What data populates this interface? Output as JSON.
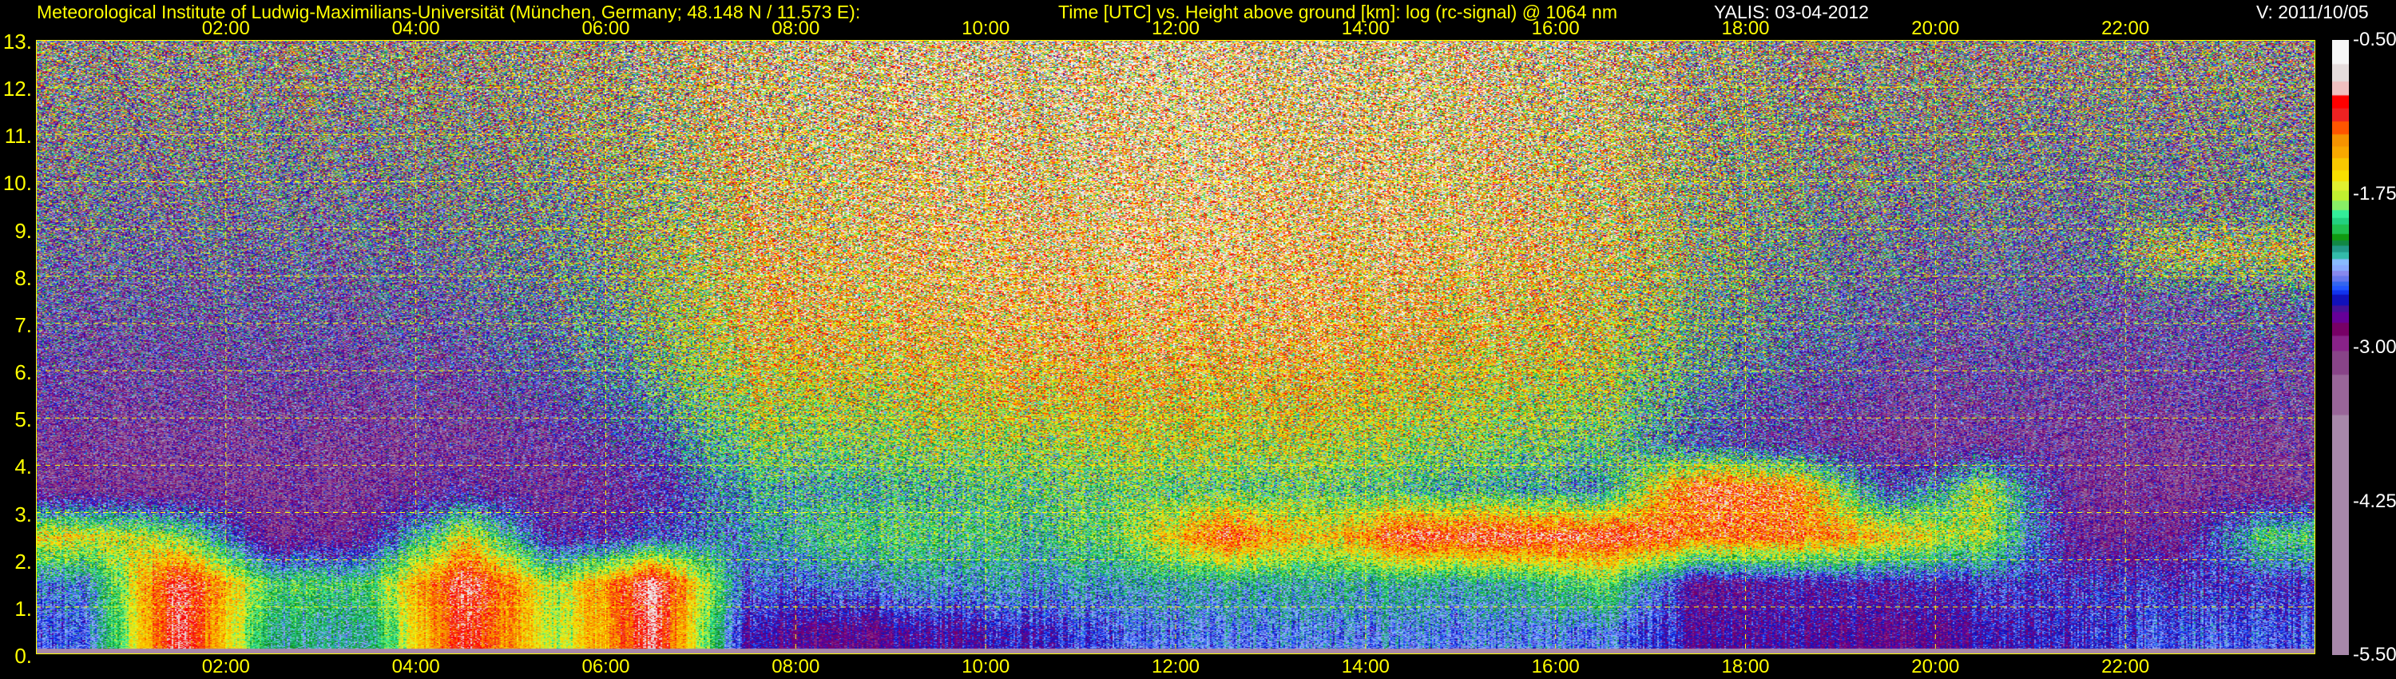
{
  "header": {
    "title": "Meteorological Institute of Ludwig-Maximilians-Universität (München, Germany; 48.148 N / 11.573 E):",
    "subtitle": "Time [UTC] vs. Height above ground [km]: log (rc-signal) @ 1064 nm",
    "instrument": "YALIS: 03-04-2012",
    "version": "V: 2011/10/05"
  },
  "chart_data": {
    "type": "heatmap",
    "title": "Time [UTC] vs. Height above ground [km]: log (rc-signal) @ 1064 nm",
    "xlabel": "Time [UTC]",
    "ylabel": "Height above ground [km]",
    "xlim_hours": [
      0,
      24
    ],
    "ylim_km": [
      0,
      13
    ],
    "grid": true,
    "x_tick_labels": [
      "02:00",
      "04:00",
      "06:00",
      "08:00",
      "10:00",
      "12:00",
      "14:00",
      "16:00",
      "18:00",
      "20:00",
      "22:00"
    ],
    "y_tick_labels": [
      "0.",
      "1.",
      "2.",
      "3.",
      "4.",
      "5.",
      "6.",
      "7.",
      "8.",
      "9.",
      "10.",
      "11.",
      "12.",
      "13."
    ],
    "colorbar": {
      "range": [
        -5.5,
        -0.5
      ],
      "tick_labels": [
        "-0.50",
        "-1.75",
        "-3.00",
        "-4.25",
        "-5.50"
      ],
      "colors": [
        "#f7f7f7",
        "#e5dcdc",
        "#f0c0c0",
        "#ff0000",
        "#ee2222",
        "#ff5500",
        "#f59300",
        "#f8a800",
        "#f8c800",
        "#f8e000",
        "#e0f030",
        "#c0f030",
        "#88ee66",
        "#33ee99",
        "#22d080",
        "#20c050",
        "#119911",
        "#118844",
        "#229988",
        "#33bbaa",
        "#88bbff",
        "#88aaff",
        "#8888ee",
        "#6677ee",
        "#3366ee",
        "#2255ff",
        "#1133ee",
        "#1111bb",
        "#441199",
        "#660099",
        "#770066",
        "#882288",
        "#884488",
        "#996699",
        "#a888aa"
      ]
    },
    "grid_hours": [
      0.5,
      1.5,
      2.5,
      3.5,
      4.5,
      5.5,
      6.5,
      7.5,
      8.5,
      9.5,
      10.5,
      11.5,
      12.5,
      13.5,
      14.5,
      15.5,
      16.5,
      17.5,
      18.5,
      19.5,
      20.5,
      21.5,
      22.5,
      23.5
    ],
    "grid_heights_km": [
      0.5,
      1.5,
      2.5,
      3.5,
      4.5,
      5.5,
      6.5,
      7.5,
      8.5,
      9.5,
      10.5,
      11.5,
      12.5
    ],
    "log_signal_by_hour": [
      [
        -2.5,
        -2.4,
        -1.6,
        -3.0,
        -3.0,
        -2.9,
        -2.8,
        -2.7,
        -2.6,
        -2.5,
        -2.4,
        -2.3,
        -2.2
      ],
      [
        -0.9,
        -0.9,
        -1.8,
        -3.0,
        -3.0,
        -2.9,
        -2.8,
        -2.7,
        -2.6,
        -2.5,
        -2.4,
        -2.3,
        -2.2
      ],
      [
        -2.2,
        -2.0,
        -3.0,
        -3.0,
        -3.0,
        -2.9,
        -2.8,
        -2.7,
        -2.6,
        -2.5,
        -2.4,
        -2.3,
        -2.2
      ],
      [
        -2.2,
        -2.0,
        -2.8,
        -3.0,
        -3.0,
        -2.9,
        -2.8,
        -2.7,
        -2.6,
        -2.5,
        -2.4,
        -2.3,
        -2.2
      ],
      [
        -1.0,
        -0.9,
        -1.6,
        -2.8,
        -3.0,
        -2.9,
        -2.7,
        -2.6,
        -2.5,
        -2.4,
        -2.3,
        -2.2,
        -2.1
      ],
      [
        -1.8,
        -1.8,
        -2.8,
        -3.0,
        -2.9,
        -2.7,
        -2.5,
        -2.4,
        -2.3,
        -2.2,
        -2.1,
        -2.0,
        -2.0
      ],
      [
        -0.9,
        -0.8,
        -2.5,
        -2.7,
        -2.5,
        -2.2,
        -2.0,
        -1.9,
        -1.8,
        -1.8,
        -1.7,
        -1.7,
        -1.7
      ],
      [
        -2.7,
        -2.5,
        -2.3,
        -2.2,
        -1.9,
        -1.7,
        -1.5,
        -1.4,
        -1.4,
        -1.4,
        -1.4,
        -1.4,
        -1.4
      ],
      [
        -2.8,
        -2.4,
        -2.0,
        -2.2,
        -1.9,
        -1.7,
        -1.4,
        -1.3,
        -1.3,
        -1.3,
        -1.3,
        -1.3,
        -1.3
      ],
      [
        -2.7,
        -2.3,
        -2.0,
        -2.1,
        -1.8,
        -1.6,
        -1.4,
        -1.3,
        -1.2,
        -1.2,
        -1.2,
        -1.2,
        -1.2
      ],
      [
        -2.6,
        -2.3,
        -2.1,
        -2.0,
        -1.8,
        -1.5,
        -1.3,
        -1.2,
        -1.2,
        -1.2,
        -1.2,
        -1.2,
        -1.2
      ],
      [
        -2.5,
        -2.3,
        -1.9,
        -2.0,
        -1.7,
        -1.5,
        -1.3,
        -1.2,
        -1.1,
        -1.1,
        -1.1,
        -1.1,
        -1.1
      ],
      [
        -2.4,
        -2.2,
        -1.1,
        -2.0,
        -1.7,
        -1.5,
        -1.3,
        -1.2,
        -1.1,
        -1.1,
        -1.1,
        -1.1,
        -1.1
      ],
      [
        -2.4,
        -2.2,
        -1.6,
        -2.0,
        -1.7,
        -1.5,
        -1.3,
        -1.2,
        -1.2,
        -1.2,
        -1.2,
        -1.2,
        -1.2
      ],
      [
        -2.4,
        -2.2,
        -1.0,
        -2.1,
        -1.8,
        -1.6,
        -1.4,
        -1.3,
        -1.2,
        -1.2,
        -1.2,
        -1.2,
        -1.2
      ],
      [
        -2.4,
        -2.2,
        -1.0,
        -2.2,
        -1.9,
        -1.7,
        -1.5,
        -1.4,
        -1.3,
        -1.3,
        -1.3,
        -1.3,
        -1.3
      ],
      [
        -2.4,
        -1.9,
        -1.0,
        -2.3,
        -2.0,
        -1.8,
        -1.6,
        -1.5,
        -1.4,
        -1.4,
        -1.4,
        -1.4,
        -1.4
      ],
      [
        -2.7,
        -2.8,
        -1.2,
        -1.0,
        -2.5,
        -2.3,
        -2.1,
        -2.0,
        -1.9,
        -1.9,
        -1.9,
        -1.9,
        -1.9
      ],
      [
        -2.7,
        -2.7,
        -1.2,
        -1.2,
        -2.8,
        -2.7,
        -2.5,
        -2.4,
        -2.3,
        -2.2,
        -2.1,
        -2.1,
        -2.1
      ],
      [
        -2.8,
        -2.7,
        -1.5,
        -2.6,
        -3.0,
        -2.9,
        -2.7,
        -2.6,
        -2.5,
        -2.4,
        -2.3,
        -2.2,
        -2.2
      ],
      [
        -2.7,
        -2.6,
        -1.8,
        -1.8,
        -3.0,
        -2.9,
        -2.8,
        -2.7,
        -2.6,
        -2.5,
        -2.4,
        -2.3,
        -2.2
      ],
      [
        -2.6,
        -2.6,
        -2.9,
        -3.0,
        -3.0,
        -2.9,
        -2.8,
        -2.7,
        -2.6,
        -2.5,
        -2.4,
        -2.3,
        -2.2
      ],
      [
        -2.5,
        -2.6,
        -2.9,
        -3.0,
        -3.0,
        -2.9,
        -2.8,
        -2.7,
        -1.6,
        -2.4,
        -2.4,
        -2.3,
        -2.2
      ],
      [
        -2.5,
        -2.6,
        -2.0,
        -3.0,
        -3.0,
        -2.9,
        -2.8,
        -2.5,
        -1.7,
        -2.4,
        -2.4,
        -2.3,
        -2.2
      ]
    ]
  }
}
